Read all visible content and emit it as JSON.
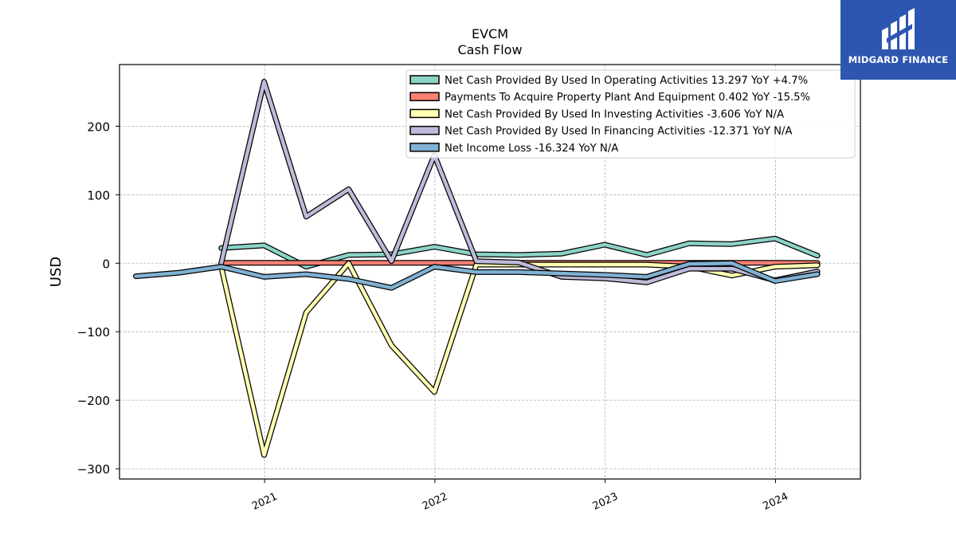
{
  "chart_data": {
    "type": "line",
    "title": "EVCM",
    "subtitle": "Cash Flow",
    "xlabel": "",
    "ylabel": "USD",
    "x_ticks": [
      "2021",
      "2022",
      "2023",
      "2024"
    ],
    "y_ticks": [
      200,
      100,
      0,
      -100,
      -200,
      -300
    ],
    "y_tick_labels": [
      "200",
      "100",
      "0",
      "−100",
      "−200",
      "−300"
    ],
    "ylim": [
      -315,
      290
    ],
    "xlim": [
      "2020-02-25",
      "2024-07-01"
    ],
    "grid": true,
    "legend_position": "top-right",
    "series": [
      {
        "name": "Net Cash Provided By Used In Operating Activities",
        "legend": "Net Cash Provided By Used In Operating Activities  13.297 YoY +4.7%",
        "color": "#8dd3c7",
        "x": [
          "2020-09-30",
          "2020-12-31",
          "2021-03-31",
          "2021-06-30",
          "2021-09-30",
          "2021-12-31",
          "2022-03-31",
          "2022-06-30",
          "2022-09-30",
          "2022-12-31",
          "2023-03-31",
          "2023-06-30",
          "2023-09-30",
          "2023-12-31",
          "2024-03-31"
        ],
        "y": [
          22,
          26,
          -5,
          12,
          13,
          24,
          13,
          12,
          14,
          27,
          12,
          29,
          28,
          36,
          11
        ]
      },
      {
        "name": "Payments To Acquire Property Plant And Equipment",
        "legend": "Payments To Acquire Property Plant And Equipment  0.402 YoY -15.5%",
        "color": "#fb8072",
        "x": [
          "2020-09-30",
          "2020-12-31",
          "2021-03-31",
          "2021-06-30",
          "2021-09-30",
          "2021-12-31",
          "2022-03-31",
          "2022-06-30",
          "2022-09-30",
          "2022-12-31",
          "2023-03-31",
          "2023-06-30",
          "2023-09-30",
          "2023-12-31",
          "2024-03-31"
        ],
        "y": [
          0.5,
          0.5,
          0.5,
          0.5,
          0.5,
          0.5,
          0.5,
          0.5,
          0.5,
          0.5,
          0.5,
          0.5,
          0.5,
          0.5,
          0.4
        ]
      },
      {
        "name": "Net Cash Provided By Used In Investing Activities",
        "legend": "Net Cash Provided By Used In Investing Activities  -3.606 YoY N/A",
        "color": "#ffffb3",
        "x": [
          "2020-09-30",
          "2020-12-31",
          "2021-03-31",
          "2021-06-30",
          "2021-09-30",
          "2021-12-31",
          "2022-03-31",
          "2022-06-30",
          "2022-09-30",
          "2022-12-31",
          "2023-03-31",
          "2023-06-30",
          "2023-09-30",
          "2023-12-31",
          "2024-03-31"
        ],
        "y": [
          -5,
          -280,
          -72,
          0,
          -120,
          -188,
          -2,
          -2,
          -2,
          -2,
          -2,
          -5,
          -18,
          -5,
          -3
        ]
      },
      {
        "name": "Net Cash Provided By Used In Financing Activities",
        "legend": "Net Cash Provided By Used In Financing Activities  -12.371 YoY N/A",
        "color": "#bebada",
        "x": [
          "2020-09-30",
          "2020-12-31",
          "2021-03-31",
          "2021-06-30",
          "2021-09-30",
          "2021-12-31",
          "2022-03-31",
          "2022-06-30",
          "2022-09-30",
          "2022-12-31",
          "2023-03-31",
          "2023-06-30",
          "2023-09-30",
          "2023-12-31",
          "2024-03-31"
        ],
        "y": [
          0,
          265,
          68,
          108,
          3,
          158,
          3,
          1,
          -20,
          -22,
          -28,
          -8,
          -8,
          -25,
          -12
        ]
      },
      {
        "name": "Net Income Loss",
        "legend": "Net Income Loss  -16.324 YoY N/A",
        "color": "#80b1d3",
        "x": [
          "2020-03-31",
          "2020-06-30",
          "2020-09-30",
          "2020-12-31",
          "2021-03-31",
          "2021-06-30",
          "2021-09-30",
          "2021-12-31",
          "2022-03-31",
          "2022-06-30",
          "2022-09-30",
          "2022-12-31",
          "2023-03-31",
          "2023-06-30",
          "2023-09-30",
          "2023-12-31",
          "2024-03-31"
        ],
        "y": [
          -19,
          -14,
          -5,
          -20,
          -16,
          -23,
          -36,
          -5,
          -13,
          -13,
          -15,
          -17,
          -20,
          -1,
          0,
          -26,
          -16
        ]
      }
    ]
  },
  "logo": {
    "text": "MIDGARD FINANCE"
  }
}
